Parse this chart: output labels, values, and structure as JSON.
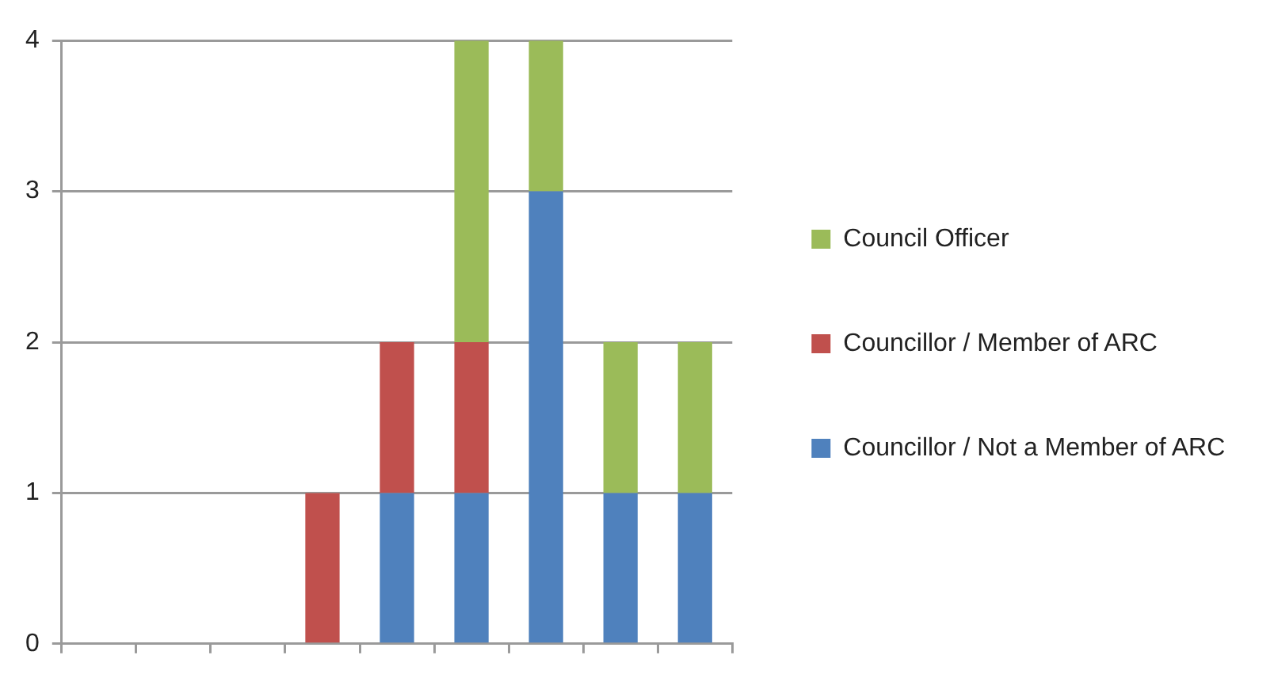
{
  "chart_data": {
    "type": "bar",
    "categories": [
      null,
      null,
      null,
      null,
      null,
      null,
      null,
      null,
      null
    ],
    "series": [
      {
        "name": "Councillor / Not a Member of ARC",
        "color": "#4f81bd",
        "values": [
          null,
          null,
          null,
          null,
          1,
          1,
          3,
          1,
          1
        ]
      },
      {
        "name": "Councillor / Member of ARC",
        "color": "#c0504d",
        "values": [
          null,
          null,
          null,
          1,
          1,
          1,
          null,
          null,
          null
        ]
      },
      {
        "name": "Council Officer",
        "color": "#9bbb59",
        "values": [
          null,
          null,
          null,
          null,
          null,
          2,
          1,
          1,
          1
        ]
      }
    ],
    "stacked": true,
    "ylim": [
      0,
      4
    ],
    "yticks": [
      0,
      1,
      2,
      3,
      4
    ],
    "grid": "y",
    "legend": "right"
  }
}
